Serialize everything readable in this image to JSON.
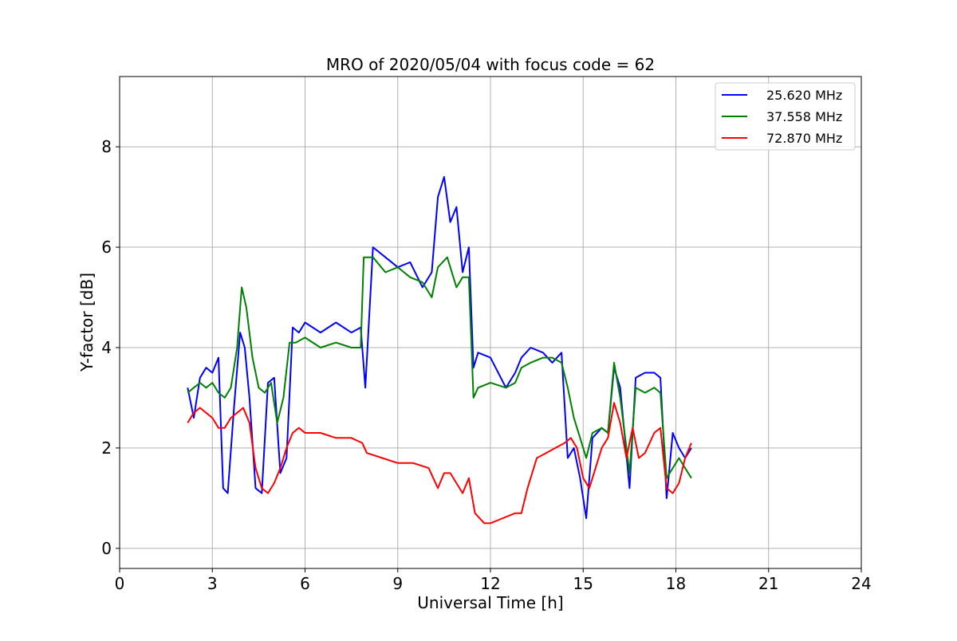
{
  "chart_data": {
    "type": "line",
    "title": "MRO of 2020/05/04 with focus code = 62",
    "xlabel": "Universal Time [h]",
    "ylabel": "Y-factor [dB]",
    "xlim": [
      0,
      24
    ],
    "ylim": [
      -0.4,
      9.4
    ],
    "xticks": [
      0,
      3,
      6,
      9,
      12,
      15,
      18,
      21,
      24
    ],
    "yticks": [
      0,
      2,
      4,
      6,
      8
    ],
    "grid": true,
    "legend_position": "top-right",
    "series": [
      {
        "name": "25.620 MHz",
        "color": "#0000ff",
        "x": [
          2.2,
          2.4,
          2.6,
          2.8,
          3.0,
          3.2,
          3.35,
          3.5,
          3.7,
          3.9,
          4.05,
          4.2,
          4.4,
          4.6,
          4.8,
          5.0,
          5.2,
          5.4,
          5.6,
          5.8,
          6.0,
          6.5,
          7.0,
          7.5,
          7.8,
          7.95,
          8.2,
          8.6,
          9.0,
          9.4,
          9.8,
          10.1,
          10.3,
          10.5,
          10.7,
          10.9,
          11.1,
          11.3,
          11.45,
          11.6,
          12.0,
          12.5,
          12.8,
          13.0,
          13.3,
          13.7,
          14.0,
          14.3,
          14.5,
          14.7,
          14.9,
          15.1,
          15.3,
          15.6,
          15.8,
          16.0,
          16.2,
          16.5,
          16.7,
          17.0,
          17.3,
          17.5,
          17.7,
          17.9,
          18.1,
          18.3,
          18.5
        ],
        "values": [
          3.2,
          2.6,
          3.4,
          3.6,
          3.5,
          3.8,
          1.2,
          1.1,
          2.8,
          4.3,
          4.0,
          3.0,
          1.2,
          1.1,
          3.3,
          3.4,
          1.5,
          1.8,
          4.4,
          4.3,
          4.5,
          4.3,
          4.5,
          4.3,
          4.4,
          3.2,
          6.0,
          5.8,
          5.6,
          5.7,
          5.2,
          5.5,
          7.0,
          7.4,
          6.5,
          6.8,
          5.5,
          6.0,
          3.6,
          3.9,
          3.8,
          3.2,
          3.5,
          3.8,
          4.0,
          3.9,
          3.7,
          3.9,
          1.8,
          2.0,
          1.4,
          0.6,
          2.2,
          2.4,
          2.3,
          3.6,
          3.2,
          1.2,
          3.4,
          3.5,
          3.5,
          3.4,
          1.0,
          2.3,
          2.0,
          1.8,
          2.0
        ]
      },
      {
        "name": "37.558 MHz",
        "color": "#008000",
        "x": [
          2.2,
          2.4,
          2.6,
          2.8,
          3.0,
          3.2,
          3.4,
          3.6,
          3.8,
          3.95,
          4.1,
          4.3,
          4.5,
          4.7,
          4.9,
          5.1,
          5.3,
          5.5,
          5.7,
          6.0,
          6.5,
          7.0,
          7.5,
          7.8,
          7.9,
          8.2,
          8.6,
          9.0,
          9.4,
          9.8,
          10.1,
          10.3,
          10.6,
          10.9,
          11.1,
          11.3,
          11.45,
          11.6,
          12.0,
          12.5,
          12.8,
          13.0,
          13.3,
          13.7,
          14.0,
          14.3,
          14.5,
          14.7,
          14.9,
          15.1,
          15.3,
          15.6,
          15.8,
          16.0,
          16.2,
          16.5,
          16.7,
          17.0,
          17.3,
          17.5,
          17.7,
          17.9,
          18.1,
          18.3,
          18.5
        ],
        "values": [
          3.1,
          3.2,
          3.3,
          3.2,
          3.3,
          3.1,
          3.0,
          3.2,
          4.0,
          5.2,
          4.8,
          3.8,
          3.2,
          3.1,
          3.3,
          2.5,
          3.0,
          4.1,
          4.1,
          4.2,
          4.0,
          4.1,
          4.0,
          4.0,
          5.8,
          5.8,
          5.5,
          5.6,
          5.4,
          5.3,
          5.0,
          5.6,
          5.8,
          5.2,
          5.4,
          5.4,
          3.0,
          3.2,
          3.3,
          3.2,
          3.3,
          3.6,
          3.7,
          3.8,
          3.8,
          3.7,
          3.2,
          2.6,
          2.2,
          1.8,
          2.3,
          2.4,
          2.3,
          3.7,
          3.0,
          1.5,
          3.2,
          3.1,
          3.2,
          3.1,
          1.4,
          1.6,
          1.8,
          1.6,
          1.4
        ]
      },
      {
        "name": "72.870 MHz",
        "color": "#ff0000",
        "x": [
          2.2,
          2.4,
          2.6,
          2.8,
          3.0,
          3.2,
          3.4,
          3.6,
          3.8,
          4.0,
          4.2,
          4.4,
          4.6,
          4.8,
          5.0,
          5.2,
          5.4,
          5.6,
          5.8,
          6.0,
          6.5,
          7.0,
          7.5,
          7.85,
          8.0,
          8.5,
          9.0,
          9.5,
          10.0,
          10.3,
          10.5,
          10.7,
          10.9,
          11.1,
          11.3,
          11.5,
          11.8,
          12.0,
          12.4,
          12.8,
          13.0,
          13.2,
          13.5,
          13.8,
          14.1,
          14.4,
          14.6,
          14.8,
          15.0,
          15.2,
          15.4,
          15.6,
          15.8,
          16.0,
          16.2,
          16.4,
          16.6,
          16.8,
          17.0,
          17.3,
          17.5,
          17.7,
          17.9,
          18.1,
          18.3,
          18.5
        ],
        "values": [
          2.5,
          2.7,
          2.8,
          2.7,
          2.6,
          2.4,
          2.4,
          2.6,
          2.7,
          2.8,
          2.5,
          1.6,
          1.2,
          1.1,
          1.3,
          1.6,
          2.0,
          2.3,
          2.4,
          2.3,
          2.3,
          2.2,
          2.2,
          2.1,
          1.9,
          1.8,
          1.7,
          1.7,
          1.6,
          1.2,
          1.5,
          1.5,
          1.3,
          1.1,
          1.4,
          0.7,
          0.5,
          0.5,
          0.6,
          0.7,
          0.7,
          1.2,
          1.8,
          1.9,
          2.0,
          2.1,
          2.2,
          2.0,
          1.4,
          1.2,
          1.6,
          2.0,
          2.2,
          2.9,
          2.5,
          1.8,
          2.4,
          1.8,
          1.9,
          2.3,
          2.4,
          1.2,
          1.1,
          1.3,
          1.8,
          2.1
        ]
      }
    ]
  }
}
